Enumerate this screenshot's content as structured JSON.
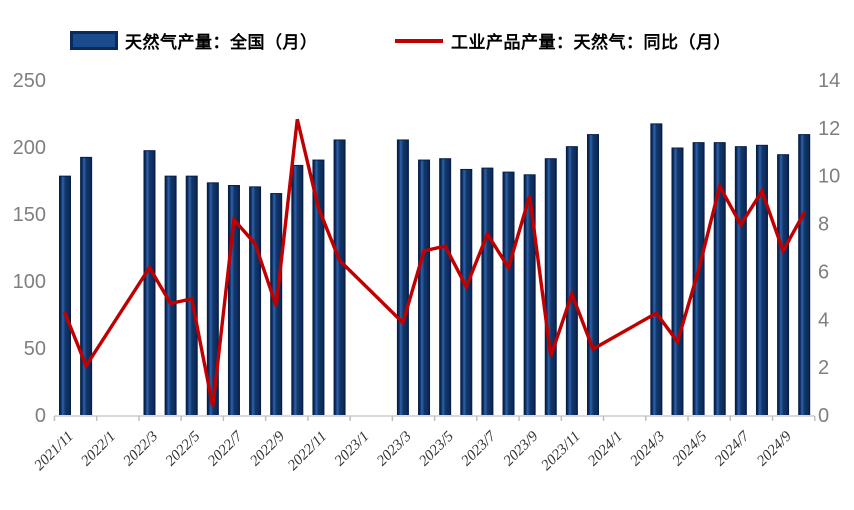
{
  "legend": {
    "items": [
      {
        "label": "天然气产量：全国（月）",
        "marker": "bar-swatch",
        "color": "#15417E"
      },
      {
        "label": "工业产品产量：天然气：同比（月）",
        "marker": "line-swatch",
        "color": "#C00000"
      }
    ]
  },
  "chart_data": {
    "type": "bar",
    "categories": [
      "2021/11",
      "2021/12",
      "2022/1",
      "2022/2",
      "2022/3",
      "2022/4",
      "2022/5",
      "2022/6",
      "2022/7",
      "2022/8",
      "2022/9",
      "2022/10",
      "2022/11",
      "2022/12",
      "2023/1",
      "2023/2",
      "2023/3",
      "2023/4",
      "2023/5",
      "2023/6",
      "2023/7",
      "2023/8",
      "2023/9",
      "2023/10",
      "2023/11",
      "2023/12",
      "2024/1",
      "2024/2",
      "2024/3",
      "2024/4",
      "2024/5",
      "2024/6",
      "2024/7",
      "2024/8",
      "2024/9",
      "2024/10"
    ],
    "series": [
      {
        "name": "天然气产量：全国（月）",
        "type": "bar",
        "axis": "left",
        "color": "#12366B",
        "values": [
          179,
          193,
          null,
          null,
          198,
          179,
          179,
          174,
          172,
          171,
          166,
          187,
          191,
          206,
          null,
          null,
          206,
          191,
          192,
          184,
          185,
          182,
          180,
          192,
          201,
          210,
          null,
          null,
          218,
          200,
          204,
          204,
          201,
          202,
          195,
          210
        ]
      },
      {
        "name": "工业产品产量：天然气：同比（月）",
        "type": "line",
        "axis": "right",
        "color": "#C00000",
        "values": [
          4.3,
          2.1,
          null,
          null,
          6.2,
          4.7,
          4.9,
          0.4,
          8.2,
          7.2,
          4.6,
          12.4,
          8.7,
          6.5,
          null,
          null,
          3.9,
          6.9,
          7.1,
          5.4,
          7.6,
          6.2,
          9.2,
          2.5,
          5.1,
          2.8,
          null,
          null,
          4.3,
          3.1,
          6.1,
          9.6,
          8.0,
          9.4,
          6.9,
          8.5
        ]
      }
    ],
    "left_axis": {
      "range": [
        0,
        250
      ],
      "ticks": [
        0,
        50,
        100,
        150,
        200,
        250
      ]
    },
    "right_axis": {
      "range": [
        0,
        14
      ],
      "ticks": [
        0,
        2,
        4,
        6,
        8,
        10,
        12,
        14
      ]
    },
    "x_tick_labels": [
      "2021/11",
      "2022/1",
      "2022/3",
      "2022/5",
      "2022/7",
      "2022/9",
      "2022/11",
      "2023/1",
      "2023/3",
      "2023/5",
      "2023/7",
      "2023/9",
      "2023/11",
      "2024/1",
      "2024/3",
      "2024/5",
      "2024/7",
      "2024/9"
    ],
    "legend_position": "top",
    "grid": false
  },
  "colors": {
    "bar_fill": "#12366B",
    "bar_edge": "#071E45",
    "bar_highlight": "#2E63AC",
    "line": "#C00000",
    "axis_line": "#D9D9D9",
    "tick_mark": "#BFBFBF",
    "y_label": "#7F7F7F",
    "x_label": "#303030"
  }
}
